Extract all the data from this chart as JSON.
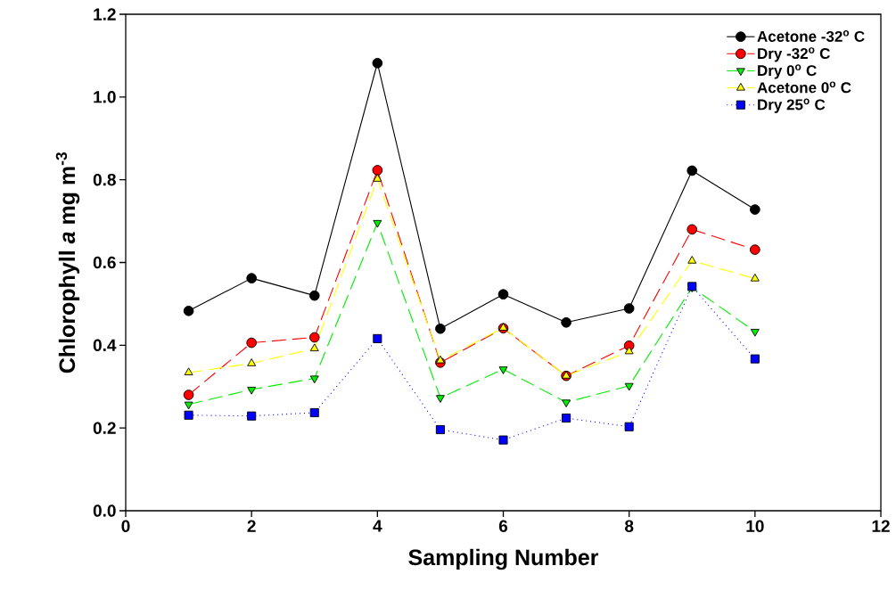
{
  "chart_data": {
    "type": "line",
    "xlabel": "Sampling Number",
    "ylabel": "Chlorophyll *a* mg m$^{-3}$",
    "x": [
      1,
      2,
      3,
      4,
      5,
      6,
      7,
      8,
      9,
      10
    ],
    "series": [
      {
        "name": "Acetone -32$^{o}$ C",
        "color": "#000000",
        "marker": "circle",
        "line_style": "solid",
        "values": [
          0.483,
          0.562,
          0.52,
          1.082,
          0.44,
          0.523,
          0.455,
          0.489,
          0.822,
          0.728
        ]
      },
      {
        "name": "Dry -32$^{o}$ C",
        "color": "#ff0000",
        "marker": "circle",
        "line_style": "dashed",
        "values": [
          0.28,
          0.406,
          0.419,
          0.823,
          0.358,
          0.441,
          0.326,
          0.399,
          0.68,
          0.631
        ]
      },
      {
        "name": "Dry 0$^{o}$ C",
        "color": "#00ee00",
        "marker": "triangle-down",
        "line_style": "dashed",
        "values": [
          0.257,
          0.293,
          0.32,
          0.696,
          0.273,
          0.342,
          0.262,
          0.302,
          0.54,
          0.433
        ]
      },
      {
        "name": "Acetone 0$^{o}$ C",
        "color": "#ffff00",
        "marker": "triangle",
        "line_style": "dashed",
        "values": [
          0.334,
          0.356,
          0.392,
          0.802,
          0.363,
          0.442,
          0.326,
          0.385,
          0.604,
          0.561
        ]
      },
      {
        "name": "Dry 25$^{o}$ C",
        "color": "#0000ff",
        "marker": "square",
        "line_style": "dotted",
        "values": [
          0.231,
          0.229,
          0.237,
          0.416,
          0.196,
          0.171,
          0.224,
          0.203,
          0.542,
          0.367
        ]
      }
    ],
    "xlim": [
      0,
      12
    ],
    "xticks": [
      0,
      2,
      4,
      6,
      8,
      10,
      12
    ],
    "ylim": [
      0,
      1.2
    ],
    "yticks": [
      {
        "value": 0,
        "label": "0.0"
      },
      0.2,
      0.4,
      0.6,
      0.8,
      {
        "value": 1,
        "label": "1.0"
      },
      1.2
    ],
    "grid": false,
    "legend": "top right"
  }
}
